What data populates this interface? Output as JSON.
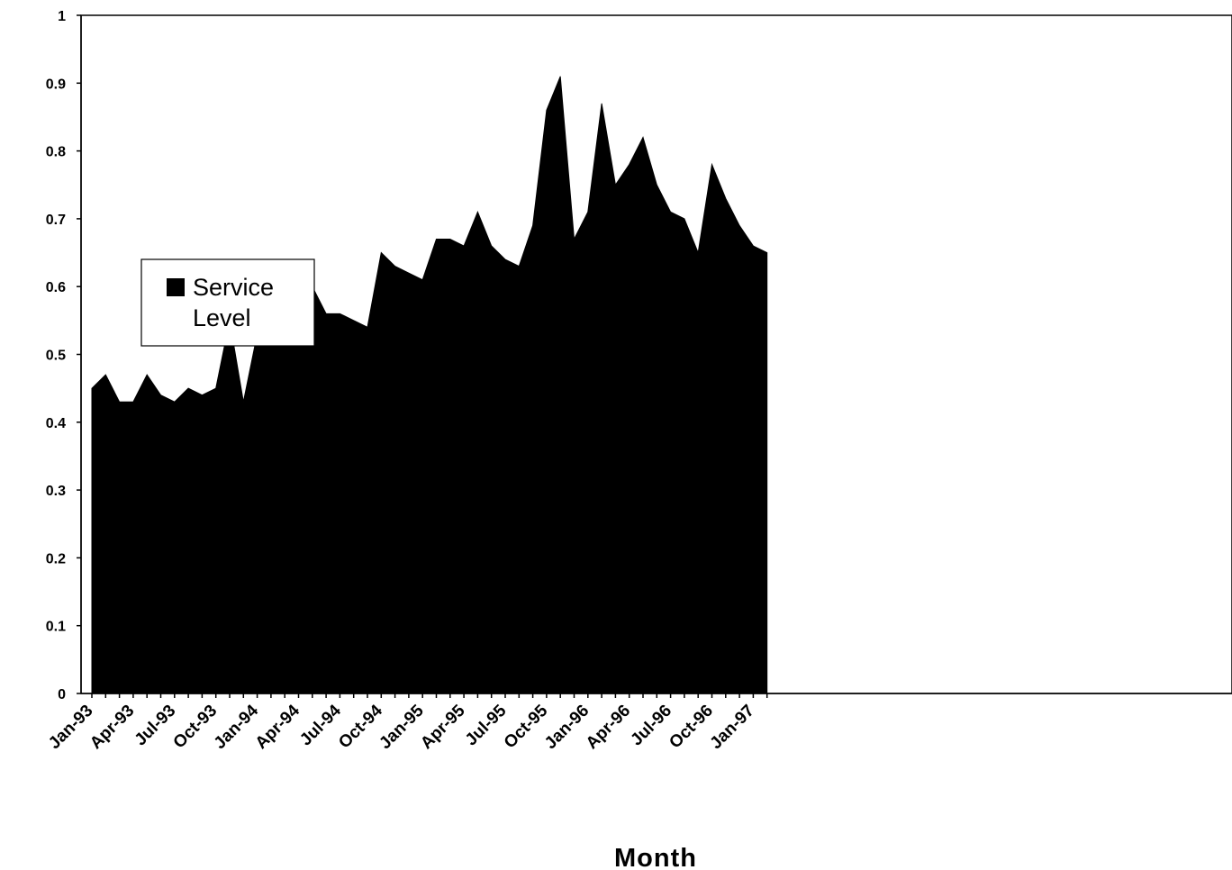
{
  "chart_data": {
    "type": "area",
    "title": "",
    "xlabel": "Month",
    "ylabel": "",
    "ylim": [
      0,
      1
    ],
    "yticks": [
      "0",
      "0.1",
      "0.2",
      "0.3",
      "0.4",
      "0.5",
      "0.6",
      "0.7",
      "0.8",
      "0.9",
      "1"
    ],
    "x": [
      "Jan-93",
      "Feb-93",
      "Mar-93",
      "Apr-93",
      "May-93",
      "Jun-93",
      "Jul-93",
      "Aug-93",
      "Sep-93",
      "Oct-93",
      "Nov-93",
      "Dec-93",
      "Jan-94",
      "Feb-94",
      "Mar-94",
      "Apr-94",
      "May-94",
      "Jun-94",
      "Jul-94",
      "Aug-94",
      "Sep-94",
      "Oct-94",
      "Nov-94",
      "Dec-94",
      "Jan-95",
      "Feb-95",
      "Mar-95",
      "Apr-95",
      "May-95",
      "Jun-95",
      "Jul-95",
      "Aug-95",
      "Sep-95",
      "Oct-95",
      "Nov-95",
      "Dec-95",
      "Jan-96",
      "Feb-96",
      "Mar-96",
      "Apr-96",
      "May-96",
      "Jun-96",
      "Jul-96",
      "Aug-96",
      "Sep-96",
      "Oct-96",
      "Nov-96",
      "Dec-96",
      "Jan-97",
      "Feb-97"
    ],
    "xtick_labels": [
      "Jan-93",
      "Apr-93",
      "Jul-93",
      "Oct-93",
      "Jan-94",
      "Apr-94",
      "Jul-94",
      "Oct-94",
      "Jan-95",
      "Apr-95",
      "Jul-95",
      "Oct-95",
      "Jan-96",
      "Apr-96",
      "Jul-96",
      "Oct-96",
      "Jan-97"
    ],
    "series": [
      {
        "name": "Service Level",
        "color": "#000000",
        "values": [
          0.45,
          0.47,
          0.43,
          0.43,
          0.47,
          0.44,
          0.43,
          0.45,
          0.44,
          0.45,
          0.55,
          0.43,
          0.53,
          0.57,
          0.55,
          0.57,
          0.6,
          0.56,
          0.56,
          0.55,
          0.54,
          0.65,
          0.63,
          0.62,
          0.61,
          0.67,
          0.67,
          0.66,
          0.71,
          0.66,
          0.64,
          0.63,
          0.69,
          0.86,
          0.91,
          0.67,
          0.71,
          0.87,
          0.75,
          0.78,
          0.82,
          0.75,
          0.71,
          0.7,
          0.65,
          0.78,
          0.73,
          0.69,
          0.66,
          0.65
        ]
      }
    ],
    "grid": false,
    "legend": {
      "position": "left",
      "entries": [
        "Service",
        "Level"
      ]
    }
  }
}
